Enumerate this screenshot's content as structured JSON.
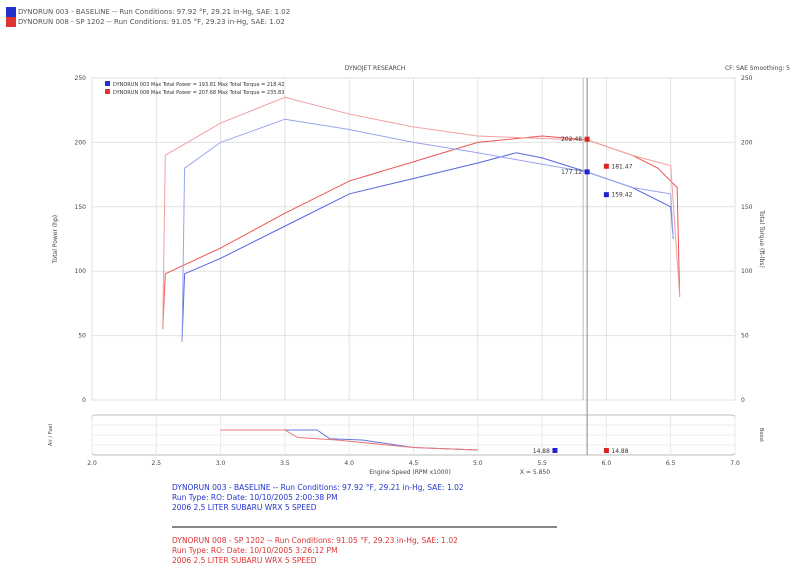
{
  "header": {
    "runs": [
      {
        "label": "DYNORUN 003 - BASELINE -- Run Conditions: 97.92 °F, 29.21 in-Hg, SAE: 1.02",
        "color": "#2233cc"
      },
      {
        "label": "DYNORUN 008 - SP 1202 -- Run Conditions: 91.05 °F, 29.23 in-Hg, SAE: 1.02",
        "color": "#dd3333"
      }
    ]
  },
  "chart_data": {
    "type": "line",
    "title": "DYNOJET RESEARCH",
    "subtitle": "CF: SAE  Smoothing: 5",
    "xlabel": "Engine Speed (RPM x1000)",
    "ylabel": "Total Power (hp)",
    "y2label": "Total Torque (ft-lbs)",
    "xlim": [
      2.0,
      7.0
    ],
    "ylim": [
      0,
      250
    ],
    "xticks": [
      "2.0",
      "2.5",
      "3.0",
      "3.5",
      "4.0",
      "4.5",
      "5.0",
      "5.5",
      "6.0",
      "6.5",
      "7.0"
    ],
    "yticks": [
      "0",
      "50",
      "100",
      "150",
      "200",
      "250"
    ],
    "cursor": {
      "x": 5.85,
      "label": "X = 5.850"
    },
    "legend": [
      "DYNORUN 003 Max Total Power = 193.81   Max Total Torque = 218.42",
      "DYNORUN 008 Max Total Power = 207.68   Max Total Torque = 235.83"
    ],
    "series": [
      {
        "name": "DYNORUN 003 Total Power",
        "color": "#5566dd",
        "x": [
          2.7,
          2.72,
          3.0,
          3.5,
          4.0,
          4.5,
          5.0,
          5.3,
          5.5,
          5.85,
          6.2,
          6.5,
          6.52
        ],
        "y": [
          45,
          98,
          110,
          135,
          160,
          172,
          184,
          192,
          188,
          177,
          165,
          150,
          125
        ]
      },
      {
        "name": "DYNORUN 008 Total Power",
        "color": "#ee5555",
        "x": [
          2.55,
          2.57,
          3.0,
          3.5,
          4.0,
          4.5,
          5.0,
          5.5,
          5.85,
          6.2,
          6.4,
          6.55,
          6.57
        ],
        "y": [
          55,
          98,
          118,
          145,
          170,
          185,
          200,
          205,
          202,
          190,
          180,
          165,
          80
        ]
      },
      {
        "name": "DYNORUN 003 Total Torque",
        "color": "#99a5ee",
        "x": [
          2.7,
          2.72,
          3.0,
          3.5,
          4.0,
          4.5,
          5.0,
          5.5,
          5.85,
          6.2,
          6.5,
          6.52
        ],
        "y": [
          45,
          180,
          200,
          218,
          210,
          200,
          192,
          183,
          177,
          165,
          160,
          125
        ]
      },
      {
        "name": "DYNORUN 008 Total Torque",
        "color": "#f0a0a0",
        "x": [
          2.55,
          2.57,
          3.0,
          3.5,
          4.0,
          4.5,
          5.0,
          5.5,
          5.85,
          6.2,
          6.5,
          6.57
        ],
        "y": [
          55,
          190,
          215,
          235,
          222,
          212,
          205,
          203,
          202,
          190,
          182,
          80
        ]
      }
    ],
    "markers": [
      {
        "x": 5.85,
        "y": 202.48,
        "label": "202.48",
        "color": "#dd2222"
      },
      {
        "x": 5.85,
        "y": 177.12,
        "label": "177.12",
        "color": "#2222cc"
      },
      {
        "x": 6.0,
        "y": 181.47,
        "label": "181.47",
        "color": "#dd2222"
      },
      {
        "x": 6.0,
        "y": 159.42,
        "label": "159.42",
        "color": "#2222cc"
      }
    ],
    "lower": {
      "ylabel": "Air / Fuel",
      "y2label": "Boost",
      "series": [
        {
          "color": "#6677dd",
          "x": [
            3.0,
            3.75,
            3.85,
            4.1,
            4.5,
            5.0
          ],
          "y": [
            0.8,
            0.8,
            0.45,
            0.4,
            0.1,
            0
          ]
        },
        {
          "color": "#ee7777",
          "x": [
            3.0,
            3.5,
            3.6,
            3.9,
            4.5,
            5.0
          ],
          "y": [
            0.8,
            0.8,
            0.5,
            0.4,
            0.1,
            0
          ]
        }
      ],
      "markers": [
        {
          "label": "14.88",
          "color": "#2222cc"
        },
        {
          "label": "14.88",
          "color": "#dd2222"
        }
      ]
    }
  },
  "footer": {
    "blue": [
      "DYNORUN 003 - BASELINE -- Run Conditions: 97.92 °F, 29.21 in-Hg, SAE: 1.02",
      "Run Type: RO: Date: 10/10/2005 2:00:38 PM",
      "2006 2.5 LITER SUBARU WRX 5 SPEED"
    ],
    "red": [
      "DYNORUN 008 - SP 1202 -- Run Conditions: 91.05 °F, 29.23 in-Hg, SAE: 1.02",
      "Run Type: RO: Date: 10/10/2005 3:26:12 PM",
      "2006 2.5 LITER SUBARU WRX 5 SPEED"
    ]
  }
}
